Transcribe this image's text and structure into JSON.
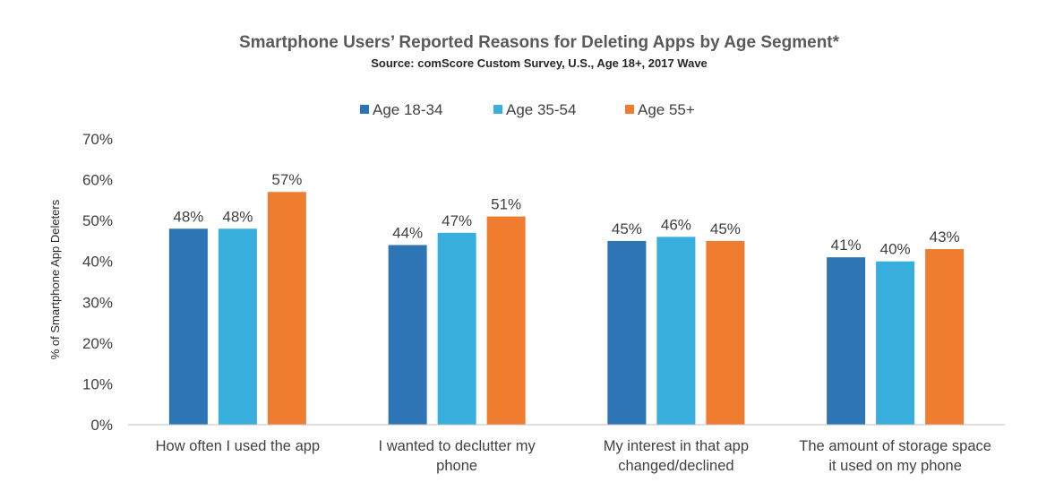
{
  "chart_data": {
    "type": "bar",
    "title": "Smartphone Users’ Reported Reasons for Deleting Apps by Age Segment*",
    "subtitle": "Source: comScore Custom Survey, U.S., Age 18+, 2017 Wave",
    "ylabel": "% of Smartphone App Deleters",
    "xlabel": "",
    "ylim": [
      0,
      70
    ],
    "yticks": [
      "0%",
      "10%",
      "20%",
      "30%",
      "40%",
      "50%",
      "60%",
      "70%"
    ],
    "categories": [
      [
        "How often I used the app"
      ],
      [
        "I wanted to declutter my",
        "phone"
      ],
      [
        "My interest in that app",
        "changed/declined"
      ],
      [
        "The amount of storage space",
        "it used on my phone"
      ]
    ],
    "series": [
      {
        "name": "Age 18-34",
        "color": "#2E75B6",
        "values": [
          48,
          44,
          45,
          41
        ],
        "labels": [
          "48%",
          "44%",
          "45%",
          "41%"
        ]
      },
      {
        "name": "Age 35-54",
        "color": "#38AEDC",
        "values": [
          48,
          47,
          46,
          40
        ],
        "labels": [
          "48%",
          "47%",
          "46%",
          "40%"
        ]
      },
      {
        "name": "Age 55+",
        "color": "#F07C2F",
        "values": [
          57,
          51,
          45,
          43
        ],
        "labels": [
          "57%",
          "51%",
          "45%",
          "43%"
        ]
      }
    ],
    "legend_position": "top-center",
    "grid": false
  }
}
